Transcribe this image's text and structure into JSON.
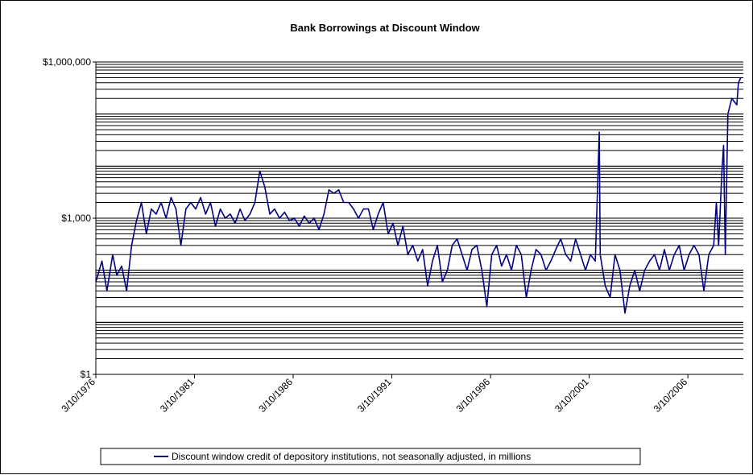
{
  "chart_data": {
    "type": "line",
    "title": "Bank Borrowings at Discount Window",
    "xlabel": "",
    "ylabel": "",
    "y_scale": "log",
    "ylim": [
      1,
      1000000
    ],
    "y_ticks": [
      {
        "value": 1,
        "label": "$1"
      },
      {
        "value": 1000,
        "label": "$1,000"
      },
      {
        "value": 1000000,
        "label": "$1,000,000"
      }
    ],
    "x_range": [
      "1976-03-10",
      "2008-12-31"
    ],
    "x_ticks": [
      "3/10/1976",
      "3/10/1981",
      "3/10/1986",
      "3/10/1991",
      "3/10/1996",
      "3/10/2001",
      "3/10/2006"
    ],
    "grid": "horizontal",
    "legend_position": "bottom",
    "series": [
      {
        "name": "Discount window credit of depository institutions, not seasonally adjusted, in millions",
        "color": "#000080",
        "points": [
          [
            "1976-03-10",
            60
          ],
          [
            "1976-07-01",
            150
          ],
          [
            "1976-10-01",
            40
          ],
          [
            "1977-01-15",
            200
          ],
          [
            "1977-04-01",
            80
          ],
          [
            "1977-07-01",
            120
          ],
          [
            "1977-10-01",
            40
          ],
          [
            "1978-01-01",
            300
          ],
          [
            "1978-04-01",
            900
          ],
          [
            "1978-07-01",
            2000
          ],
          [
            "1978-10-01",
            500
          ],
          [
            "1979-01-01",
            1500
          ],
          [
            "1979-04-01",
            1200
          ],
          [
            "1979-07-01",
            2000
          ],
          [
            "1979-10-01",
            1000
          ],
          [
            "1980-01-01",
            2500
          ],
          [
            "1980-04-01",
            1500
          ],
          [
            "1980-07-01",
            300
          ],
          [
            "1980-10-01",
            1500
          ],
          [
            "1981-01-01",
            2000
          ],
          [
            "1981-04-01",
            1500
          ],
          [
            "1981-07-01",
            2500
          ],
          [
            "1981-10-01",
            1200
          ],
          [
            "1982-01-01",
            2000
          ],
          [
            "1982-04-01",
            700
          ],
          [
            "1982-07-01",
            1500
          ],
          [
            "1982-10-01",
            1000
          ],
          [
            "1983-01-01",
            1200
          ],
          [
            "1983-04-01",
            800
          ],
          [
            "1983-07-01",
            1500
          ],
          [
            "1983-10-01",
            900
          ],
          [
            "1984-01-01",
            1200
          ],
          [
            "1984-04-01",
            2000
          ],
          [
            "1984-07-01",
            8000
          ],
          [
            "1984-10-01",
            4000
          ],
          [
            "1985-01-01",
            1200
          ],
          [
            "1985-04-01",
            1500
          ],
          [
            "1985-07-01",
            1000
          ],
          [
            "1985-10-01",
            1300
          ],
          [
            "1986-01-01",
            900
          ],
          [
            "1986-04-01",
            1000
          ],
          [
            "1986-07-01",
            700
          ],
          [
            "1986-10-01",
            1100
          ],
          [
            "1987-01-01",
            800
          ],
          [
            "1987-04-01",
            1000
          ],
          [
            "1987-07-01",
            600
          ],
          [
            "1987-10-01",
            1200
          ],
          [
            "1988-01-01",
            3500
          ],
          [
            "1988-04-01",
            3000
          ],
          [
            "1988-07-01",
            3500
          ],
          [
            "1988-10-01",
            2000
          ],
          [
            "1989-01-01",
            2000
          ],
          [
            "1989-04-01",
            1500
          ],
          [
            "1989-07-01",
            1000
          ],
          [
            "1989-10-01",
            1500
          ],
          [
            "1990-01-01",
            1500
          ],
          [
            "1990-04-01",
            600
          ],
          [
            "1990-07-01",
            1200
          ],
          [
            "1990-10-01",
            2000
          ],
          [
            "1991-01-01",
            500
          ],
          [
            "1991-04-01",
            800
          ],
          [
            "1991-07-01",
            300
          ],
          [
            "1991-10-01",
            700
          ],
          [
            "1992-01-01",
            200
          ],
          [
            "1992-04-01",
            300
          ],
          [
            "1992-07-01",
            150
          ],
          [
            "1992-10-01",
            250
          ],
          [
            "1993-01-01",
            50
          ],
          [
            "1993-04-01",
            150
          ],
          [
            "1993-07-01",
            300
          ],
          [
            "1993-10-01",
            60
          ],
          [
            "1994-01-01",
            100
          ],
          [
            "1994-04-01",
            300
          ],
          [
            "1994-07-01",
            400
          ],
          [
            "1994-10-01",
            200
          ],
          [
            "1995-01-01",
            100
          ],
          [
            "1995-04-01",
            250
          ],
          [
            "1995-07-01",
            300
          ],
          [
            "1995-10-01",
            100
          ],
          [
            "1996-01-01",
            20
          ],
          [
            "1996-04-01",
            200
          ],
          [
            "1996-07-01",
            300
          ],
          [
            "1996-10-01",
            120
          ],
          [
            "1997-01-01",
            200
          ],
          [
            "1997-04-01",
            100
          ],
          [
            "1997-07-01",
            300
          ],
          [
            "1997-10-01",
            200
          ],
          [
            "1998-01-01",
            30
          ],
          [
            "1998-04-01",
            100
          ],
          [
            "1998-07-01",
            250
          ],
          [
            "1998-10-01",
            200
          ],
          [
            "1999-01-01",
            100
          ],
          [
            "1999-04-01",
            150
          ],
          [
            "1999-07-01",
            250
          ],
          [
            "1999-10-01",
            400
          ],
          [
            "2000-01-01",
            200
          ],
          [
            "2000-04-01",
            150
          ],
          [
            "2000-07-01",
            400
          ],
          [
            "2000-10-01",
            200
          ],
          [
            "2001-01-01",
            100
          ],
          [
            "2001-04-01",
            200
          ],
          [
            "2001-07-01",
            150
          ],
          [
            "2001-09-12",
            45000
          ],
          [
            "2001-10-01",
            200
          ],
          [
            "2002-01-01",
            50
          ],
          [
            "2002-04-01",
            30
          ],
          [
            "2002-07-01",
            200
          ],
          [
            "2002-10-01",
            100
          ],
          [
            "2003-01-01",
            15
          ],
          [
            "2003-04-01",
            50
          ],
          [
            "2003-07-01",
            100
          ],
          [
            "2003-10-01",
            40
          ],
          [
            "2004-01-01",
            100
          ],
          [
            "2004-04-01",
            150
          ],
          [
            "2004-07-01",
            200
          ],
          [
            "2004-10-01",
            100
          ],
          [
            "2005-01-01",
            250
          ],
          [
            "2005-04-01",
            100
          ],
          [
            "2005-07-01",
            200
          ],
          [
            "2005-10-01",
            300
          ],
          [
            "2006-01-01",
            100
          ],
          [
            "2006-04-01",
            200
          ],
          [
            "2006-07-01",
            300
          ],
          [
            "2006-10-01",
            200
          ],
          [
            "2007-01-01",
            40
          ],
          [
            "2007-04-01",
            200
          ],
          [
            "2007-07-01",
            300
          ],
          [
            "2007-08-20",
            2000
          ],
          [
            "2007-10-01",
            300
          ],
          [
            "2007-12-01",
            8000
          ],
          [
            "2008-01-01",
            25000
          ],
          [
            "2008-02-01",
            200
          ],
          [
            "2008-03-20",
            100000
          ],
          [
            "2008-06-01",
            200000
          ],
          [
            "2008-09-01",
            150000
          ],
          [
            "2008-10-01",
            400000
          ],
          [
            "2008-11-15",
            500000
          ]
        ]
      }
    ]
  }
}
